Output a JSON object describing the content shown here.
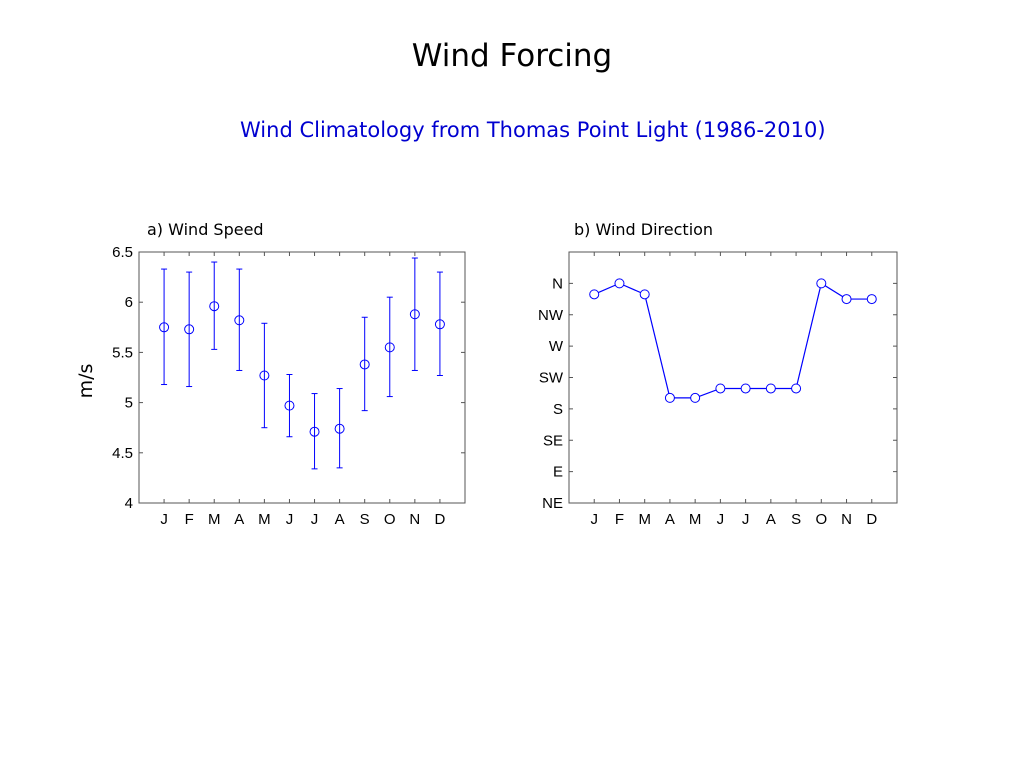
{
  "slide": {
    "title": "Wind Forcing",
    "subtitle": "Wind Climatology from Thomas Point Light (1986-2010)"
  },
  "colors": {
    "series": "#0000ff",
    "subtitle": "#0000d0"
  },
  "chart_data": [
    {
      "type": "scatter",
      "title": "a) Wind Speed",
      "xlabel": "",
      "ylabel": "m/s",
      "categories": [
        "J",
        "F",
        "M",
        "A",
        "M",
        "J",
        "J",
        "A",
        "S",
        "O",
        "N",
        "D"
      ],
      "yticks": [
        "4",
        "4.5",
        "5",
        "5.5",
        "6",
        "6.5"
      ],
      "ylim": [
        4,
        6.5
      ],
      "grid": false,
      "series": [
        {
          "values": [
            5.75,
            5.73,
            5.96,
            5.82,
            5.27,
            4.97,
            4.71,
            4.74,
            5.38,
            5.55,
            5.88,
            5.78
          ],
          "err_low": [
            5.18,
            5.16,
            5.53,
            5.32,
            4.75,
            4.66,
            4.34,
            4.35,
            4.92,
            5.06,
            5.32,
            5.27
          ],
          "err_high": [
            6.33,
            6.3,
            6.4,
            6.33,
            5.79,
            5.28,
            5.09,
            5.14,
            5.85,
            6.05,
            6.44,
            6.3
          ]
        }
      ]
    },
    {
      "type": "line",
      "title": "b) Wind Direction",
      "xlabel": "",
      "ylabel": "",
      "categories": [
        "J",
        "F",
        "M",
        "A",
        "M",
        "J",
        "J",
        "A",
        "S",
        "O",
        "N",
        "D"
      ],
      "yticks": [
        "NE",
        "E",
        "SE",
        "S",
        "SW",
        "W",
        "NW",
        "N"
      ],
      "ylim": [
        0,
        8
      ],
      "grid": false,
      "series": [
        {
          "values": [
            6.65,
            7.0,
            6.65,
            3.35,
            3.35,
            3.65,
            3.65,
            3.65,
            3.65,
            7.0,
            6.5,
            6.5
          ]
        }
      ]
    }
  ]
}
